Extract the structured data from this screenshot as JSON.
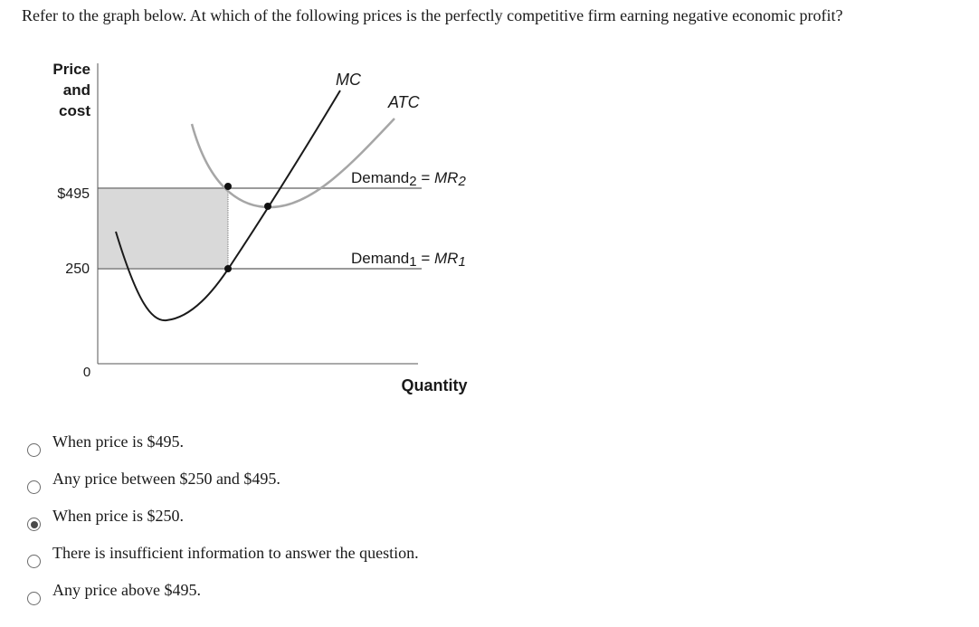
{
  "question": "Refer to the graph below. At which of the following prices is the perfectly competitive firm earning negative economic profit?",
  "graph": {
    "y_axis_label": [
      "Price",
      "and",
      "cost"
    ],
    "x_axis_label": "Quantity",
    "price_high": "$495",
    "price_low": "250",
    "origin": "0",
    "mc_label": "MC",
    "atc_label": "ATC",
    "demand2": {
      "name": "Demand",
      "sub": "2",
      "eq": " = ",
      "mr": "MR",
      "mr_sub": "2"
    },
    "demand1": {
      "name": "Demand",
      "sub": "1",
      "eq": " = ",
      "mr": "MR",
      "mr_sub": "1"
    },
    "colors": {
      "mc_curve": "#1a1a1a",
      "atc_curve": "#a6a6a6",
      "demand_lines": "#9a9a9a",
      "loss_area": "#d9d9d9",
      "axis": "#555555"
    }
  },
  "options": [
    {
      "label": "When price is $495.",
      "selected": false
    },
    {
      "label": "Any price between $250 and $495.",
      "selected": false
    },
    {
      "label": "When price is $250.",
      "selected": true
    },
    {
      "label": "There is insufficient information to answer the question.",
      "selected": false
    },
    {
      "label": "Any price above $495.",
      "selected": false
    }
  ]
}
